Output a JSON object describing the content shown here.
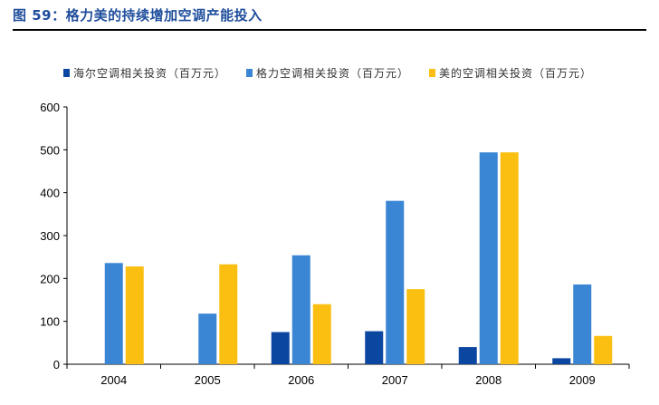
{
  "figure": {
    "title": "图 59：格力美的持续增加空调产能投入"
  },
  "colors": {
    "title": "#1f4e9c",
    "haier": "#0b47a1",
    "gree": "#3a86d4",
    "midea": "#fbbf12"
  },
  "chart_data": {
    "type": "bar",
    "title": "",
    "xlabel": "",
    "ylabel": "",
    "categories": [
      "2004",
      "2005",
      "2006",
      "2007",
      "2008",
      "2009"
    ],
    "ylim": [
      0,
      600
    ],
    "yticks": [
      0,
      100,
      200,
      300,
      400,
      500,
      600
    ],
    "grid": false,
    "legend_position": "top",
    "series": [
      {
        "name": "海尔空调相关投资（百万元）",
        "color": "#0b47a1",
        "values": [
          0,
          0,
          75,
          77,
          40,
          14
        ]
      },
      {
        "name": "格力空调相关投资（百万元）",
        "color": "#3a86d4",
        "values": [
          236,
          118,
          254,
          381,
          494,
          186
        ]
      },
      {
        "name": "美的空调相关投资（百万元）",
        "color": "#fbbf12",
        "values": [
          228,
          233,
          140,
          175,
          494,
          66
        ]
      }
    ]
  }
}
